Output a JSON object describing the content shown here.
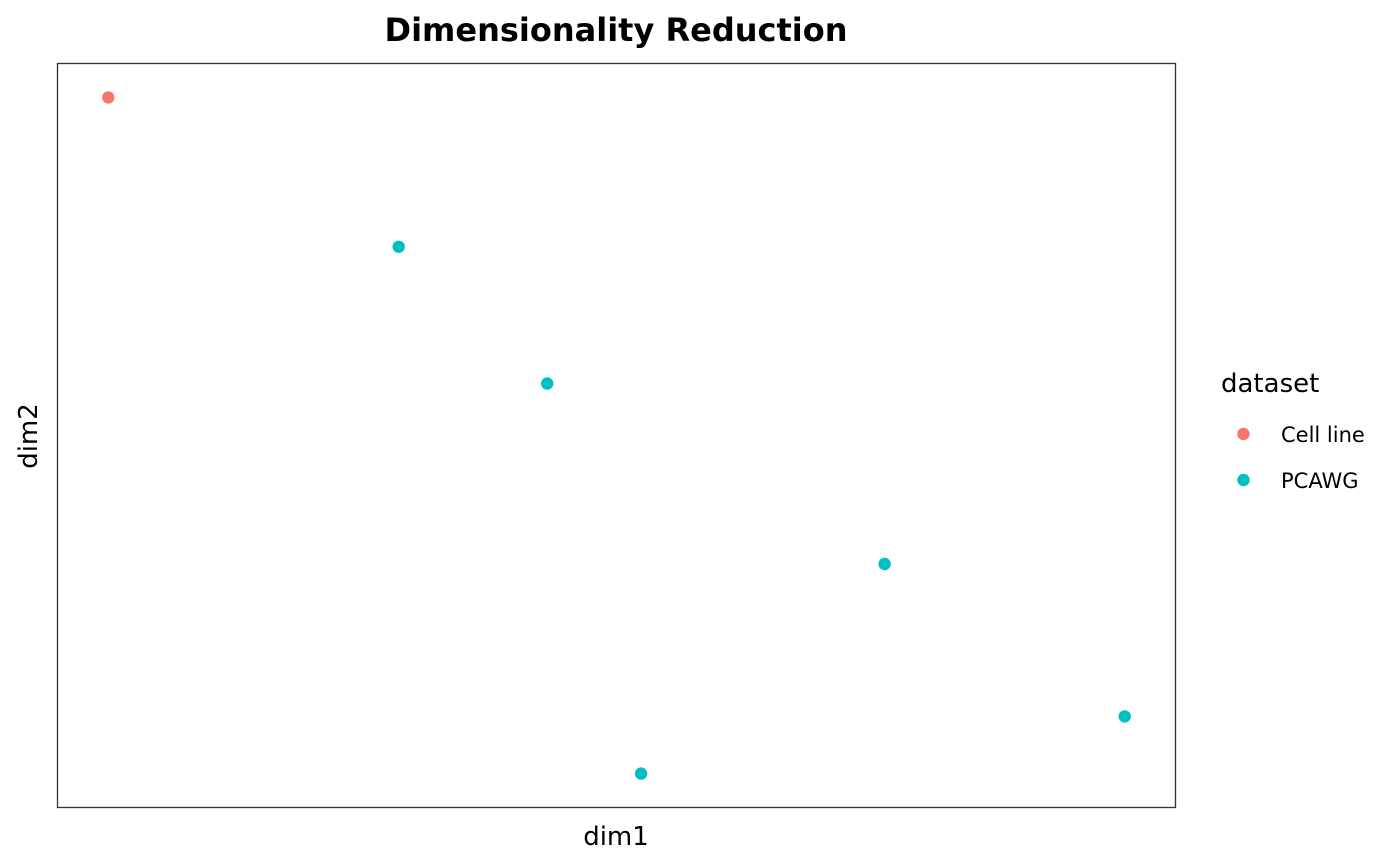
{
  "chart_data": {
    "type": "scatter",
    "title": "Dimensionality Reduction",
    "xlabel": "dim1",
    "ylabel": "dim2",
    "xlim": [
      0,
      1
    ],
    "ylim": [
      0,
      1
    ],
    "grid": false,
    "axis_ticks": false,
    "legend": {
      "title": "dataset",
      "position": "right",
      "entries": [
        {
          "name": "Cell line",
          "color": "#F8766D"
        },
        {
          "name": "PCAWG",
          "color": "#00BFC4"
        }
      ]
    },
    "series": [
      {
        "name": "Cell line",
        "color": "#F8766D",
        "points": [
          {
            "x": 0.045,
            "y": 0.955
          }
        ]
      },
      {
        "name": "PCAWG",
        "color": "#00BFC4",
        "points": [
          {
            "x": 0.305,
            "y": 0.754
          },
          {
            "x": 0.438,
            "y": 0.57
          },
          {
            "x": 0.522,
            "y": 0.045
          },
          {
            "x": 0.74,
            "y": 0.327
          },
          {
            "x": 0.955,
            "y": 0.122
          }
        ]
      }
    ]
  }
}
